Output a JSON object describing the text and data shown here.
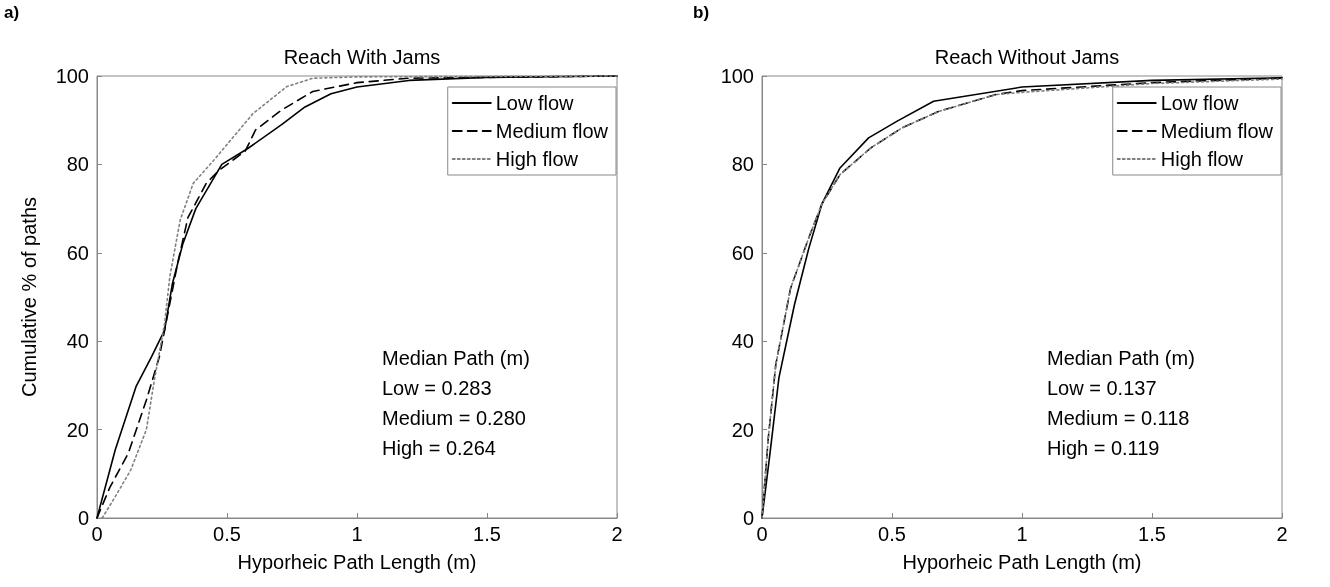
{
  "chart_data": [
    {
      "type": "line",
      "title": "Reach With Jams",
      "xlabel": "Hyporheic Path Length (m)",
      "ylabel": "Cumulative % of paths",
      "xlim": [
        0,
        2
      ],
      "ylim": [
        0,
        100
      ],
      "xticks": [
        0,
        0.5,
        1,
        1.5,
        2
      ],
      "yticks": [
        0,
        20,
        40,
        60,
        80,
        100
      ],
      "legend": "top right",
      "grid": false,
      "marker": "none",
      "annotations": [
        "a)",
        "Median Path (m)",
        "Low = 0.283",
        "Medium = 0.280",
        "High = 0.264"
      ],
      "series": [
        {
          "name": "Low flow",
          "color": "#000000",
          "line_style": "solid",
          "x": [
            0,
            0.07,
            0.15,
            0.21,
            0.26,
            0.29,
            0.33,
            0.38,
            0.48,
            0.58,
            0.71,
            0.8,
            0.9,
            1,
            1.2,
            1.5,
            2
          ],
          "values": [
            0,
            15.4,
            29.7,
            36.5,
            42.5,
            53,
            62,
            70,
            80,
            83.6,
            89,
            93,
            96,
            97.5,
            99,
            99.7,
            100
          ]
        },
        {
          "name": "Medium flow",
          "color": "#000000",
          "line_style": "dashed",
          "x": [
            0,
            0.05,
            0.12,
            0.19,
            0.24,
            0.27,
            0.31,
            0.35,
            0.42,
            0.47,
            0.57,
            0.61,
            0.71,
            0.83,
            1,
            1.2,
            2
          ],
          "values": [
            0,
            7,
            14.6,
            26.7,
            36.5,
            45.5,
            57.6,
            68,
            75.7,
            78.7,
            83,
            87.8,
            92.3,
            96.5,
            98.5,
            99.5,
            100
          ]
        },
        {
          "name": "High flow",
          "color": "#808080",
          "line_style": "dotted",
          "x": [
            0.02,
            0.07,
            0.13,
            0.19,
            0.22,
            0.26,
            0.28,
            0.32,
            0.37,
            0.45,
            0.6,
            0.73,
            0.83,
            1,
            2
          ],
          "values": [
            0,
            4.8,
            10.9,
            20,
            31,
            44,
            54.6,
            67.4,
            75.7,
            81,
            91.5,
            97.6,
            99.5,
            99.8,
            100
          ]
        }
      ]
    },
    {
      "type": "line",
      "title": "Reach Without Jams",
      "xlabel": "Hyporheic Path Length (m)",
      "xlim": [
        0,
        2
      ],
      "ylim": [
        0,
        100
      ],
      "xticks": [
        0,
        0.5,
        1,
        1.5,
        2
      ],
      "yticks": [
        0,
        20,
        40,
        60,
        80,
        100
      ],
      "legend": "top right",
      "grid": false,
      "marker": "none",
      "annotations": [
        "b)",
        "Median Path (m)",
        "Low = 0.137",
        "Medium = 0.118",
        "High = 0.119"
      ],
      "series": [
        {
          "name": "Low flow",
          "color": "#000000",
          "line_style": "solid",
          "x": [
            0,
            0.03,
            0.065,
            0.125,
            0.18,
            0.23,
            0.3,
            0.41,
            0.52,
            0.66,
            1,
            1.5,
            2
          ],
          "values": [
            0,
            14.3,
            31.7,
            48.3,
            61,
            71,
            79.2,
            86,
            89.8,
            94.3,
            97.5,
            99,
            99.6
          ]
        },
        {
          "name": "Medium flow",
          "color": "#000000",
          "line_style": "dashed",
          "x": [
            0,
            0.024,
            0.053,
            0.11,
            0.18,
            0.23,
            0.3,
            0.42,
            0.54,
            0.68,
            0.9,
            1,
            1.5,
            2
          ],
          "values": [
            0,
            18,
            34.7,
            52,
            63.4,
            71,
            77.7,
            83.8,
            88.3,
            92,
            95.8,
            96.7,
            98.5,
            99.5
          ]
        },
        {
          "name": "High flow",
          "color": "#808080",
          "line_style": "dotted",
          "x": [
            0,
            0.024,
            0.053,
            0.11,
            0.18,
            0.23,
            0.3,
            0.42,
            0.54,
            0.68,
            0.9,
            1,
            1.5,
            2
          ],
          "values": [
            0,
            18,
            34.7,
            52,
            63.4,
            71,
            77.7,
            83.8,
            88.3,
            92,
            95.8,
            96.3,
            98.3,
            99.3
          ]
        }
      ]
    }
  ]
}
